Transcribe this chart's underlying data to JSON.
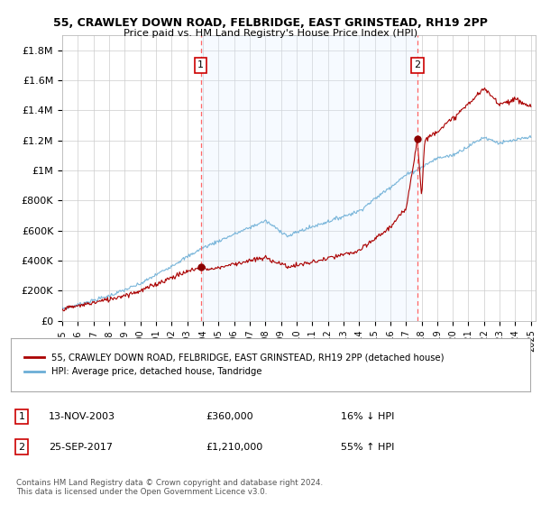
{
  "title": "55, CRAWLEY DOWN ROAD, FELBRIDGE, EAST GRINSTEAD, RH19 2PP",
  "subtitle": "Price paid vs. HM Land Registry's House Price Index (HPI)",
  "sale1_date": "13-NOV-2003",
  "sale1_price": 360000,
  "sale1_label": "16% ↓ HPI",
  "sale2_date": "25-SEP-2017",
  "sale2_price": 1210000,
  "sale2_label": "55% ↑ HPI",
  "legend_red": "55, CRAWLEY DOWN ROAD, FELBRIDGE, EAST GRINSTEAD, RH19 2PP (detached house)",
  "legend_blue": "HPI: Average price, detached house, Tandridge",
  "footer": "Contains HM Land Registry data © Crown copyright and database right 2024.\nThis data is licensed under the Open Government Licence v3.0.",
  "ylim": [
    0,
    1900000
  ],
  "yticks": [
    0,
    200000,
    400000,
    600000,
    800000,
    1000000,
    1200000,
    1400000,
    1600000,
    1800000
  ],
  "ytick_labels": [
    "£0",
    "£200K",
    "£400K",
    "£600K",
    "£800K",
    "£1M",
    "£1.2M",
    "£1.4M",
    "£1.6M",
    "£1.8M"
  ],
  "sale1_x": 2003.87,
  "sale2_x": 2017.73,
  "hpi_color": "#6baed6",
  "price_color": "#aa0000",
  "sale_marker_color": "#8b0000",
  "vline_color": "#ff6666",
  "shade_color": "#ddeeff",
  "background_color": "#ffffff"
}
